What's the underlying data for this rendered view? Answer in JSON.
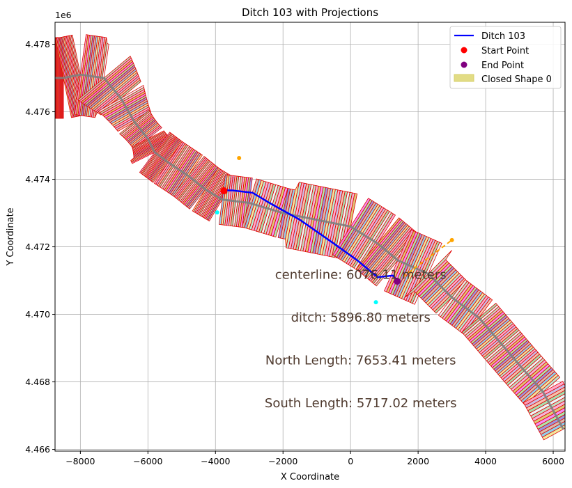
{
  "chart_data": {
    "type": "line",
    "title": "Ditch 103 with Projections",
    "xlabel": "X Coordinate",
    "ylabel": "Y Coordinate",
    "y_offset_label": "1e6",
    "xlim": [
      -8750,
      6350
    ],
    "ylim": [
      4.46595,
      4.47865
    ],
    "xticks": [
      -8000,
      -6000,
      -4000,
      -2000,
      0,
      2000,
      4000,
      6000
    ],
    "xtick_labels": [
      "−8000",
      "−6000",
      "−4000",
      "−2000",
      "0",
      "2000",
      "4000",
      "6000"
    ],
    "yticks": [
      4.466,
      4.468,
      4.47,
      4.472,
      4.474,
      4.476,
      4.478
    ],
    "ytick_labels": [
      "4.466",
      "4.468",
      "4.470",
      "4.472",
      "4.474",
      "4.476",
      "4.478"
    ],
    "grid": true,
    "legend_position": "top-right",
    "legend": [
      {
        "label": "Ditch 103",
        "kind": "line",
        "color": "#0000ff"
      },
      {
        "label": "Start Point",
        "kind": "dot",
        "color": "#ff0000"
      },
      {
        "label": "End Point",
        "kind": "dot",
        "color": "#800080"
      },
      {
        "label": "Closed Shape 0",
        "kind": "patch",
        "color": "#e2dc85"
      }
    ],
    "ditch_line": {
      "name": "Ditch 103",
      "color": "#0000ff",
      "x": [
        -3750,
        -3500,
        -2900,
        -2400,
        -1500,
        -500,
        200,
        800,
        1250,
        1380
      ],
      "y": [
        4.47367,
        4.47367,
        4.4736,
        4.4733,
        4.4728,
        4.4721,
        4.4716,
        4.4711,
        4.47115,
        4.471
      ]
    },
    "centerline": {
      "color": "#808080",
      "x": [
        -8800,
        -8500,
        -8000,
        -7300,
        -6800,
        -6400,
        -6000,
        -5800,
        -5400,
        -4800,
        -4300,
        -3800,
        -3000,
        -2000,
        -1000,
        0,
        800,
        1400,
        2300,
        3000,
        3800,
        4400,
        5000,
        5700,
        6300
      ],
      "y": [
        4.477,
        4.477,
        4.4771,
        4.477,
        4.4764,
        4.4757,
        4.4752,
        4.4748,
        4.4745,
        4.4741,
        4.4737,
        4.4734,
        4.4733,
        4.473,
        4.4728,
        4.4726,
        4.4721,
        4.4716,
        4.4712,
        4.4705,
        4.4699,
        4.4692,
        4.4685,
        4.4677,
        4.4666
      ]
    },
    "start_point": {
      "x": -3750,
      "y": 4.47366,
      "color": "#ff0000"
    },
    "end_point": {
      "x": 1380,
      "y": 4.47098,
      "color": "#800080"
    },
    "projection_line": {
      "color": "#ffa500",
      "x": [
        1380,
        3000
      ],
      "y": [
        4.47098,
        4.4722
      ]
    },
    "markers": [
      {
        "x": -3300,
        "y": 4.47463,
        "color": "#ffa500"
      },
      {
        "x": -3950,
        "y": 4.47302,
        "color": "#00ffff"
      },
      {
        "x": 750,
        "y": 4.47036,
        "color": "#00ffff"
      },
      {
        "x": 3000,
        "y": 4.4722,
        "color": "#ffa500"
      }
    ],
    "annotations": [
      {
        "text": "centerline: 6076.11 meters",
        "x": 300,
        "y": 4.47105
      },
      {
        "text": "ditch: 5896.80 meters",
        "x": 300,
        "y": 4.46978
      },
      {
        "text": "North Length: 7653.41 meters",
        "x": 300,
        "y": 4.46852
      },
      {
        "text": "South Length: 5717.02 meters",
        "x": 300,
        "y": 4.46725
      }
    ]
  }
}
